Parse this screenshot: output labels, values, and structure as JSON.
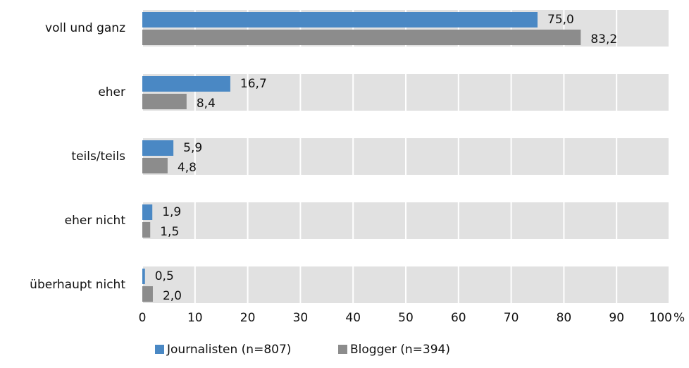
{
  "chart_data": {
    "type": "bar",
    "orientation": "horizontal",
    "categories": [
      "voll und ganz",
      "eher",
      "teils/teils",
      "eher nicht",
      "überhaupt nicht"
    ],
    "series": [
      {
        "name": "Journalisten (n=807)",
        "color": "#4a88c4",
        "values": [
          75.0,
          16.7,
          5.9,
          1.9,
          0.5
        ],
        "value_labels": [
          "75,0",
          "16,7",
          "5,9",
          "1,9",
          "0,5"
        ]
      },
      {
        "name": "Blogger (n=394)",
        "color": "#8c8c8c",
        "values": [
          83.2,
          8.4,
          4.8,
          1.5,
          2.0
        ],
        "value_labels": [
          "83,2",
          "8,4",
          "4,8",
          "1,5",
          "2,0"
        ]
      }
    ],
    "xlim": [
      0,
      100
    ],
    "xticks": [
      0,
      10,
      20,
      30,
      40,
      50,
      60,
      70,
      80,
      90,
      100
    ],
    "x_unit": "%",
    "grid": true,
    "legend": "bottom"
  }
}
